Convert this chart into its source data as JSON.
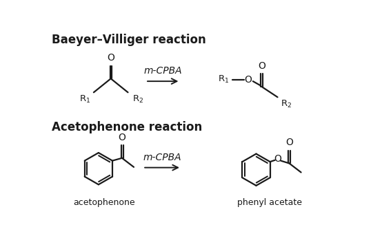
{
  "title1": "Baeyer–Villiger reaction",
  "title2": "Acetophenone reaction",
  "reagent": "m-CPBA",
  "label_acetophenone": "acetophenone",
  "label_phenyl_acetate": "phenyl acetate",
  "bg_color": "#ffffff",
  "line_color": "#1a1a1a",
  "title_fontsize": 12,
  "label_fontsize": 9,
  "reagent_fontsize": 10,
  "structure_lw": 1.6
}
